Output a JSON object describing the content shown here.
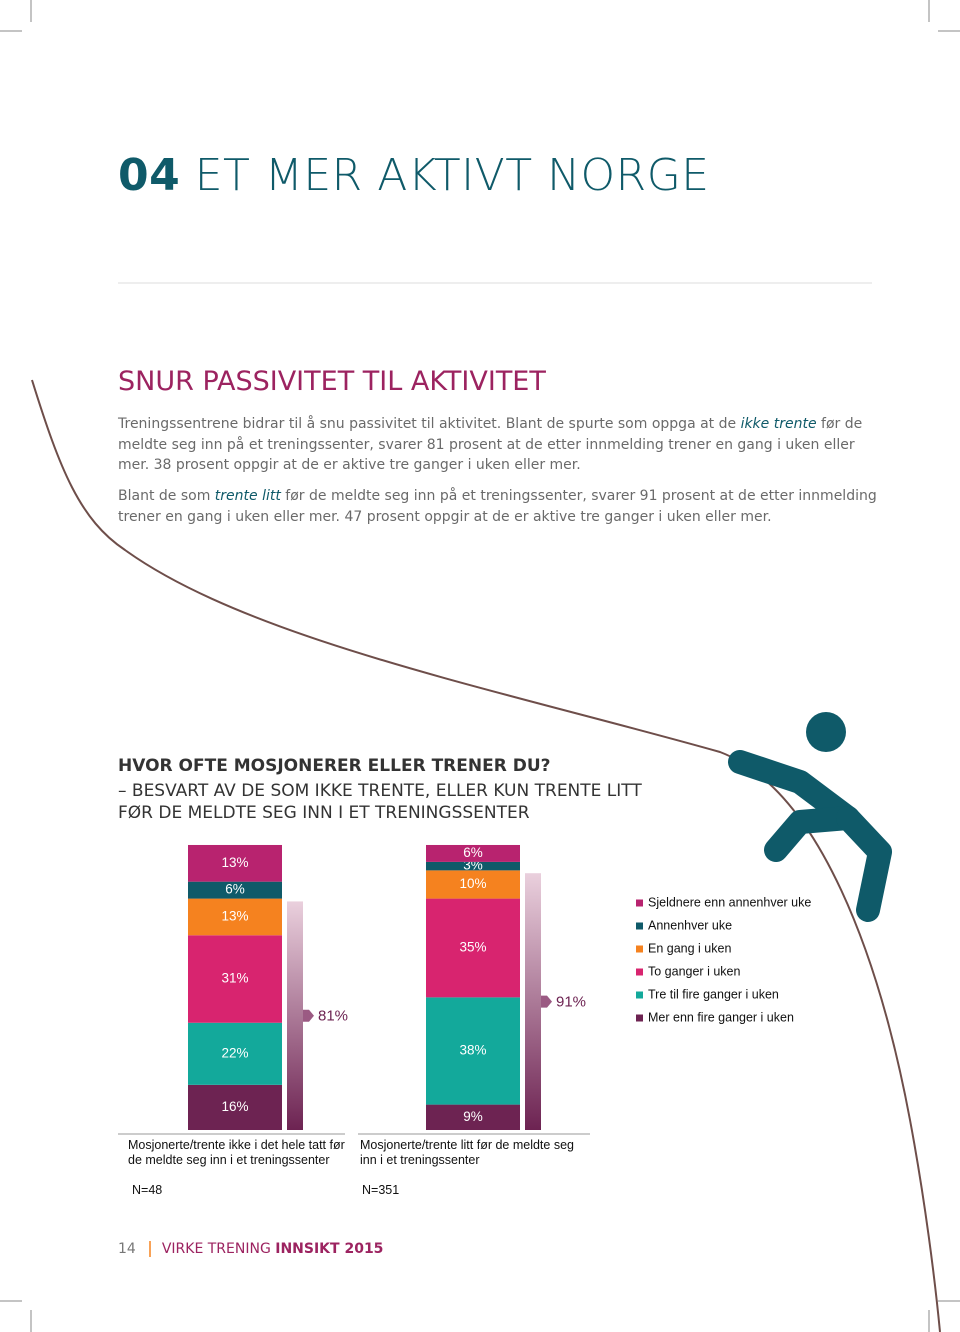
{
  "header": {
    "number": "04",
    "title": "ET MER AKTIVT NORGE"
  },
  "section": {
    "title": "SNUR PASSIVITET TIL AKTIVITET",
    "paragraphs": [
      [
        "Treningssentrene bidrar til å snu passivitet til aktivitet. Blant de spurte som oppga at de ",
        "ikke trente",
        " før de meldte seg inn på et treningssenter, svarer 81 prosent at de etter innmelding trener en gang i uken eller mer. 38 prosent oppgir at de er aktive tre ganger i uken eller mer."
      ],
      [
        "Blant de som ",
        "trente litt",
        " før de meldte seg inn på et treningssenter, svarer 91 prosent at de etter innmelding trener en gang i uken eller mer. 47 prosent oppgir at de er aktive tre ganger i uken eller mer."
      ]
    ]
  },
  "chart_data": {
    "type": "stacked_bar",
    "title": "HVOR OFTE MOSJONERER ELLER TRENER DU?",
    "subtitle": "– BESVART AV DE SOM IKKE TRENTE, ELLER KUN TRENTE LITT FØR DE MELDTE SEG INN I ET TRENINGSSENTER",
    "categories": [
      "Mosjonerte/trente ikke i det hele tatt før de meldte seg inn i et treningssenter",
      "Mosjonerte/trente litt før de meldte seg inn i et treningssenter"
    ],
    "sample_sizes": [
      "N=48",
      "N=351"
    ],
    "series": [
      {
        "name": "Sjeldnere enn annenhver uke",
        "color": "#b8236f",
        "values": [
          13,
          6
        ],
        "value_labels": [
          "13%",
          "6%"
        ]
      },
      {
        "name": "Annenhver uke",
        "color": "#0f5a69",
        "values": [
          6,
          3
        ],
        "value_labels": [
          "6%",
          "3%"
        ]
      },
      {
        "name": "En gang i uken",
        "color": "#f5821f",
        "values": [
          13,
          10
        ],
        "value_labels": [
          "13%",
          "10%"
        ]
      },
      {
        "name": "To ganger i uken",
        "color": "#d8246f",
        "values": [
          31,
          35
        ],
        "value_labels": [
          "31%",
          "35%"
        ]
      },
      {
        "name": "Tre til fire ganger i uken",
        "color": "#13a99b",
        "values": [
          22,
          38
        ],
        "value_labels": [
          "22%",
          "38%"
        ]
      },
      {
        "name": "Mer enn fire ganger i uken",
        "color": "#6d2352",
        "values": [
          16,
          9
        ],
        "value_labels": [
          "16%",
          "9%"
        ]
      }
    ],
    "totals": {
      "values": [
        81,
        91
      ],
      "value_labels": [
        "81%",
        "91%"
      ]
    }
  },
  "footer": {
    "page": "14",
    "publication": "VIRKE TRENING",
    "edition": "INNSIKT 2015"
  }
}
